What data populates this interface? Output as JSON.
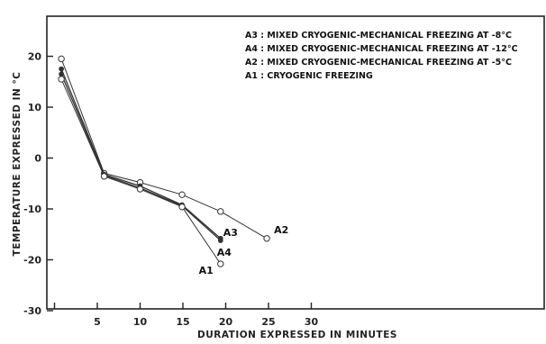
{
  "chart_data": {
    "type": "line",
    "xlabel": "DURATION EXPRESSED IN MINUTES",
    "ylabel": "TEMPERATURE  EXPRESSED IN °C",
    "xlim": [
      0,
      40
    ],
    "ylim": [
      -30,
      26
    ],
    "x_ticks": [
      0,
      5,
      10,
      15,
      20,
      25,
      30
    ],
    "y_ticks": [
      20,
      10,
      0,
      -10,
      -20,
      -30
    ],
    "grid": false,
    "legend_position": "top-right",
    "legend": [
      "A3 : MIXED CRYOGENIC-MECHANICAL FREEZING AT  -8°C",
      "A4 : MIXED CRYOGENIC-MECHANICAL FREEZING AT  -12°C",
      "A2 : MIXED CRYOGENIC-MECHANICAL FREEZING AT  -5°C",
      "A1 : CRYOGENIC FREEZING"
    ],
    "series": [
      {
        "name": "A2",
        "x": [
          0.8,
          5.8,
          10,
          14.9,
          19.4,
          24.8
        ],
        "y": [
          19.5,
          -3.0,
          -4.8,
          -7.2,
          -10.5,
          -15.8
        ]
      },
      {
        "name": "A3",
        "x": [
          0.8,
          5.8,
          10,
          14.9,
          19.4
        ],
        "y": [
          17.5,
          -3.2,
          -5.5,
          -9.2,
          -15.8
        ]
      },
      {
        "name": "A4",
        "x": [
          0.8,
          5.8,
          10,
          14.9,
          19.4
        ],
        "y": [
          16.5,
          -3.4,
          -5.9,
          -9.4,
          -16.2
        ]
      },
      {
        "name": "A1",
        "x": [
          0.8,
          5.8,
          10,
          14.9,
          19.4
        ],
        "y": [
          15.5,
          -3.6,
          -6.1,
          -9.6,
          -20.8
        ]
      }
    ]
  }
}
